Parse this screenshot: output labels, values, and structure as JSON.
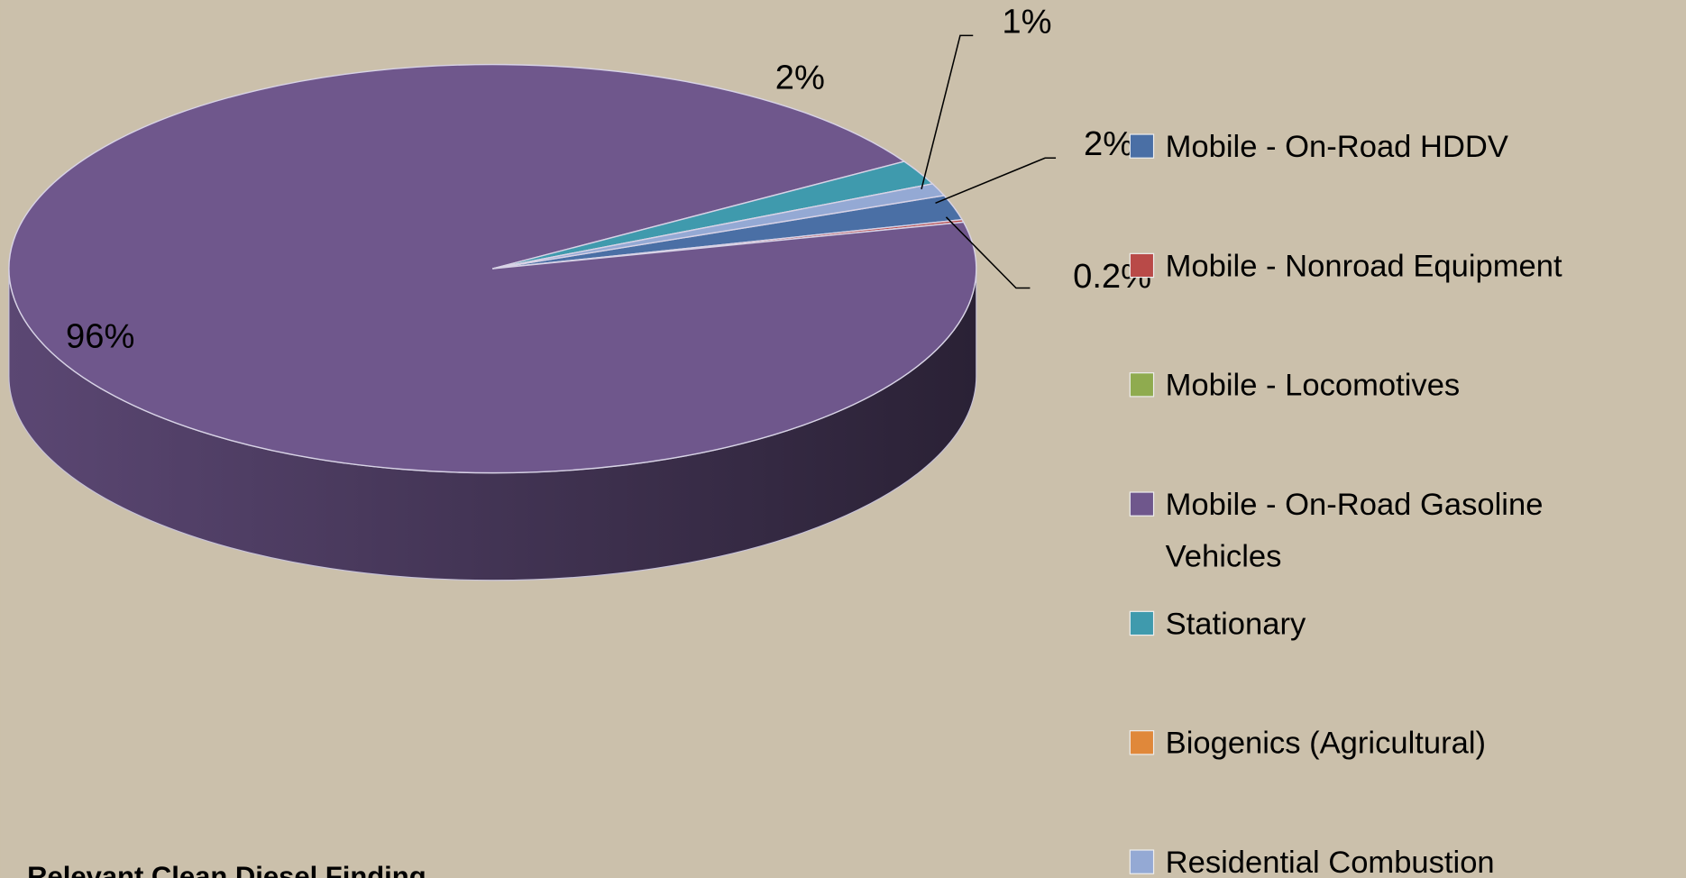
{
  "chart_data": {
    "type": "pie",
    "categories": [
      "Mobile - On-Road HDDV",
      "Mobile - Nonroad Equipment",
      "Mobile - Locomotives",
      "Mobile - On-Road Gasoline Vehicles",
      "Stationary",
      "Biogenics (Agricultural)",
      "Residential Combustion"
    ],
    "values": [
      2,
      0.2,
      0,
      96,
      2,
      0,
      1
    ],
    "value_labels": [
      "2%",
      "0.2%",
      null,
      "96%",
      "2%",
      null,
      "1%"
    ],
    "colors": [
      "#4a6fa5",
      "#b94a48",
      "#8fab4f",
      "#6f578c",
      "#3f9aad",
      "#e0883a",
      "#94a9d4"
    ],
    "legend": "right",
    "footer": "Relevant Clean Diesel Finding"
  }
}
